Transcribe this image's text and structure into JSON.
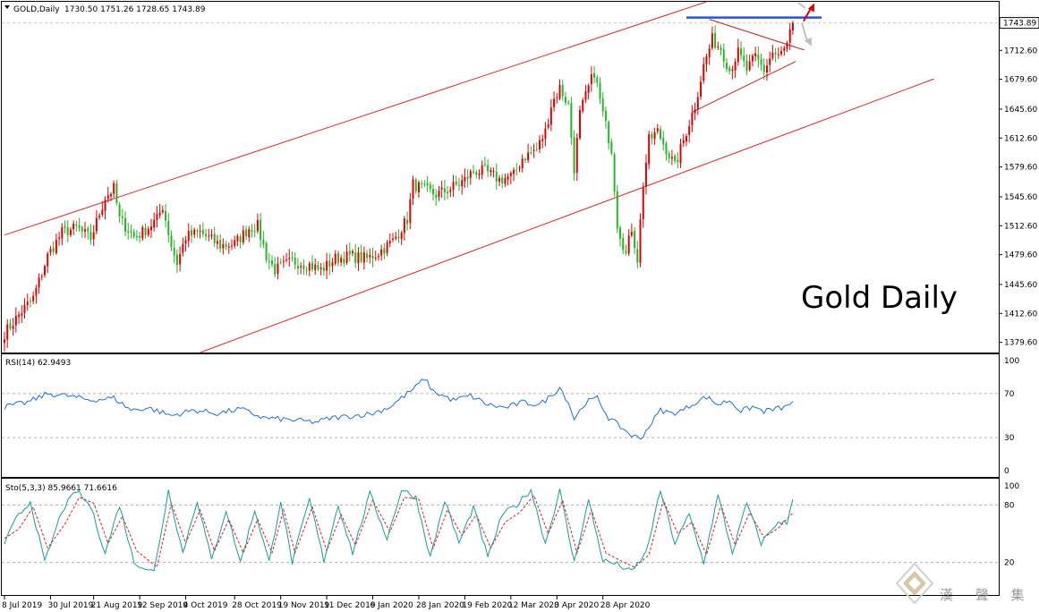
{
  "chart_data": {
    "type": "candlestick",
    "symbol_header": "GOLD,Daily",
    "ohlc_header": "1730.50 1751.26 1728.65 1743.89",
    "annotation": "Gold Daily",
    "last_price_label": "1743.89",
    "price_axis": {
      "ticks": [
        "1743.89",
        "1712.60",
        "1679.60",
        "1645.60",
        "1612.60",
        "1579.60",
        "1545.60",
        "1512.60",
        "1479.60",
        "1445.60",
        "1412.60",
        "1379.60"
      ],
      "range": [
        1368,
        1768
      ]
    },
    "date_labels": [
      "8 Jul 2019",
      "30 Jul 2019",
      "21 Aug 2019",
      "12 Sep 2019",
      "4 Oct 2019",
      "28 Oct 2019",
      "19 Nov 2019",
      "11 Dec 2019",
      "6 Jan 2020",
      "28 Jan 2020",
      "19 Feb 2020",
      "12 Mar 2020",
      "3 Apr 2020",
      "28 Apr 2020"
    ],
    "close_anchors": [
      [
        0,
        1390
      ],
      [
        6,
        1415
      ],
      [
        10,
        1430
      ],
      [
        15,
        1478
      ],
      [
        20,
        1505
      ],
      [
        25,
        1510
      ],
      [
        30,
        1498
      ],
      [
        35,
        1545
      ],
      [
        38,
        1555
      ],
      [
        40,
        1520
      ],
      [
        45,
        1500
      ],
      [
        48,
        1505
      ],
      [
        53,
        1520
      ],
      [
        55,
        1535
      ],
      [
        58,
        1490
      ],
      [
        60,
        1470
      ],
      [
        63,
        1500
      ],
      [
        68,
        1505
      ],
      [
        75,
        1490
      ],
      [
        80,
        1492
      ],
      [
        85,
        1510
      ],
      [
        88,
        1512
      ],
      [
        91,
        1478
      ],
      [
        94,
        1462
      ],
      [
        100,
        1472
      ],
      [
        106,
        1468
      ],
      [
        110,
        1462
      ],
      [
        115,
        1475
      ],
      [
        120,
        1478
      ],
      [
        126,
        1475
      ],
      [
        130,
        1482
      ],
      [
        135,
        1495
      ],
      [
        140,
        1520
      ],
      [
        142,
        1560
      ],
      [
        145,
        1555
      ],
      [
        150,
        1548
      ],
      [
        155,
        1555
      ],
      [
        160,
        1565
      ],
      [
        163,
        1575
      ],
      [
        167,
        1575
      ],
      [
        172,
        1565
      ],
      [
        177,
        1570
      ],
      [
        180,
        1590
      ],
      [
        185,
        1600
      ],
      [
        188,
        1620
      ],
      [
        190,
        1650
      ],
      [
        193,
        1670
      ],
      [
        196,
        1650
      ],
      [
        198,
        1578
      ],
      [
        200,
        1640
      ],
      [
        203,
        1670
      ],
      [
        205,
        1688
      ],
      [
        208,
        1640
      ],
      [
        211,
        1600
      ],
      [
        213,
        1515
      ],
      [
        216,
        1480
      ],
      [
        218,
        1510
      ],
      [
        220,
        1475
      ],
      [
        222,
        1560
      ],
      [
        224,
        1610
      ],
      [
        227,
        1620
      ],
      [
        230,
        1600
      ],
      [
        233,
        1580
      ],
      [
        237,
        1620
      ],
      [
        240,
        1650
      ],
      [
        243,
        1695
      ],
      [
        246,
        1725
      ],
      [
        249,
        1715
      ],
      [
        252,
        1690
      ],
      [
        255,
        1710
      ],
      [
        258,
        1690
      ],
      [
        261,
        1705
      ],
      [
        264,
        1690
      ],
      [
        267,
        1710
      ],
      [
        269,
        1705
      ],
      [
        272,
        1718
      ],
      [
        274,
        1743.89
      ]
    ],
    "channel_upper": [
      [
        0,
        1502
      ],
      [
        244,
        1768
      ]
    ],
    "channel_lower": [
      [
        68,
        1368
      ],
      [
        323,
        1680
      ]
    ],
    "resistance_line": {
      "value": 1750,
      "start_bar": 237,
      "end_bar": 284
    },
    "triangle_upper": [
      [
        245,
        1748
      ],
      [
        278,
        1713
      ]
    ],
    "triangle_lower": [
      [
        239,
        1642
      ],
      [
        275,
        1700
      ]
    ],
    "rsi": {
      "label": "RSI(14) 62.9493",
      "levels": [
        70,
        30
      ],
      "axis_ticks": [
        "100",
        "70",
        "30",
        "0"
      ],
      "anchors": [
        [
          0,
          58
        ],
        [
          8,
          62
        ],
        [
          15,
          70
        ],
        [
          22,
          68
        ],
        [
          30,
          64
        ],
        [
          38,
          66
        ],
        [
          44,
          55
        ],
        [
          50,
          57
        ],
        [
          58,
          50
        ],
        [
          66,
          55
        ],
        [
          74,
          52
        ],
        [
          82,
          56
        ],
        [
          90,
          48
        ],
        [
          100,
          46
        ],
        [
          108,
          44
        ],
        [
          114,
          48
        ],
        [
          122,
          50
        ],
        [
          128,
          52
        ],
        [
          134,
          58
        ],
        [
          140,
          70
        ],
        [
          143,
          76
        ],
        [
          146,
          84
        ],
        [
          149,
          72
        ],
        [
          156,
          64
        ],
        [
          162,
          68
        ],
        [
          168,
          60
        ],
        [
          174,
          57
        ],
        [
          180,
          62
        ],
        [
          186,
          60
        ],
        [
          190,
          68
        ],
        [
          193,
          76
        ],
        [
          196,
          62
        ],
        [
          198,
          47
        ],
        [
          202,
          62
        ],
        [
          206,
          66
        ],
        [
          210,
          48
        ],
        [
          214,
          40
        ],
        [
          218,
          32
        ],
        [
          221,
          29
        ],
        [
          224,
          40
        ],
        [
          228,
          55
        ],
        [
          232,
          52
        ],
        [
          236,
          55
        ],
        [
          240,
          62
        ],
        [
          244,
          67
        ],
        [
          248,
          60
        ],
        [
          252,
          64
        ],
        [
          256,
          54
        ],
        [
          260,
          58
        ],
        [
          264,
          54
        ],
        [
          268,
          56
        ],
        [
          272,
          58
        ],
        [
          274,
          62.95
        ]
      ]
    },
    "stochastic": {
      "label": "Sto(5,3,3) 85.9661 71.6616",
      "levels": [
        80,
        20
      ],
      "axis_ticks": [
        "100",
        "80",
        "20"
      ],
      "main_anchors": [
        [
          0,
          40
        ],
        [
          4,
          65
        ],
        [
          9,
          84
        ],
        [
          14,
          20
        ],
        [
          20,
          74
        ],
        [
          25,
          95
        ],
        [
          30,
          78
        ],
        [
          35,
          30
        ],
        [
          40,
          80
        ],
        [
          45,
          20
        ],
        [
          52,
          10
        ],
        [
          57,
          95
        ],
        [
          62,
          30
        ],
        [
          67,
          85
        ],
        [
          72,
          22
        ],
        [
          77,
          75
        ],
        [
          82,
          20
        ],
        [
          87,
          75
        ],
        [
          92,
          20
        ],
        [
          96,
          85
        ],
        [
          100,
          20
        ],
        [
          106,
          86
        ],
        [
          111,
          22
        ],
        [
          116,
          80
        ],
        [
          121,
          30
        ],
        [
          127,
          92
        ],
        [
          133,
          45
        ],
        [
          138,
          96
        ],
        [
          143,
          88
        ],
        [
          148,
          25
        ],
        [
          153,
          85
        ],
        [
          158,
          40
        ],
        [
          163,
          78
        ],
        [
          168,
          25
        ],
        [
          173,
          70
        ],
        [
          178,
          80
        ],
        [
          183,
          96
        ],
        [
          188,
          40
        ],
        [
          193,
          95
        ],
        [
          198,
          20
        ],
        [
          203,
          85
        ],
        [
          208,
          22
        ],
        [
          213,
          18
        ],
        [
          218,
          10
        ],
        [
          223,
          30
        ],
        [
          228,
          95
        ],
        [
          233,
          40
        ],
        [
          238,
          70
        ],
        [
          243,
          20
        ],
        [
          248,
          90
        ],
        [
          253,
          30
        ],
        [
          258,
          82
        ],
        [
          263,
          40
        ],
        [
          268,
          60
        ],
        [
          272,
          62
        ],
        [
          274,
          85.97
        ]
      ],
      "signal_anchors": [
        [
          0,
          45
        ],
        [
          5,
          55
        ],
        [
          10,
          78
        ],
        [
          15,
          35
        ],
        [
          21,
          60
        ],
        [
          26,
          88
        ],
        [
          31,
          82
        ],
        [
          36,
          40
        ],
        [
          41,
          68
        ],
        [
          46,
          32
        ],
        [
          53,
          15
        ],
        [
          58,
          82
        ],
        [
          63,
          40
        ],
        [
          68,
          75
        ],
        [
          73,
          32
        ],
        [
          78,
          65
        ],
        [
          83,
          30
        ],
        [
          88,
          65
        ],
        [
          93,
          30
        ],
        [
          97,
          75
        ],
        [
          101,
          30
        ],
        [
          107,
          78
        ],
        [
          112,
          32
        ],
        [
          117,
          70
        ],
        [
          122,
          38
        ],
        [
          128,
          85
        ],
        [
          134,
          52
        ],
        [
          139,
          88
        ],
        [
          144,
          86
        ],
        [
          149,
          35
        ],
        [
          154,
          75
        ],
        [
          159,
          48
        ],
        [
          164,
          70
        ],
        [
          169,
          35
        ],
        [
          174,
          62
        ],
        [
          179,
          72
        ],
        [
          184,
          90
        ],
        [
          189,
          50
        ],
        [
          194,
          85
        ],
        [
          199,
          30
        ],
        [
          204,
          75
        ],
        [
          209,
          30
        ],
        [
          214,
          22
        ],
        [
          219,
          15
        ],
        [
          224,
          28
        ],
        [
          229,
          85
        ],
        [
          234,
          50
        ],
        [
          239,
          62
        ],
        [
          244,
          28
        ],
        [
          249,
          80
        ],
        [
          254,
          38
        ],
        [
          259,
          72
        ],
        [
          264,
          46
        ],
        [
          269,
          56
        ],
        [
          274,
          71.66
        ]
      ]
    },
    "watermark_text": "漢 聲 集 團"
  }
}
